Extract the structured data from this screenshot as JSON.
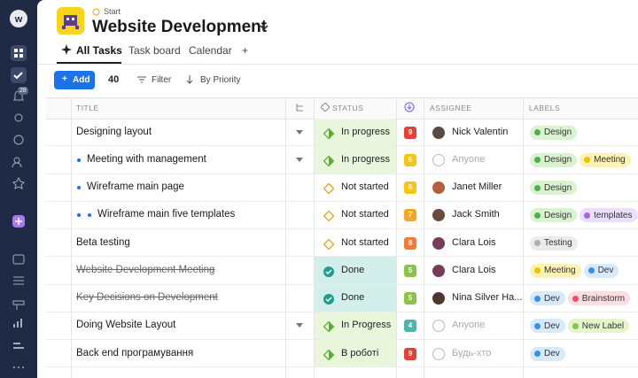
{
  "sidebar": {
    "notification_count": "28"
  },
  "header": {
    "breadcrumb": "Start",
    "title": "Website Development"
  },
  "tabs": [
    "All Tasks",
    "Task board",
    "Calendar",
    "+"
  ],
  "toolbar": {
    "add": "Add",
    "count": "40",
    "filter": "Filter",
    "sort": "By Priority"
  },
  "columns": {
    "title": "TITLE",
    "status": "STATUS",
    "assignee": "ASSIGNEE",
    "labels": "LABELS"
  },
  "rows": [
    {
      "title": "Designing layout",
      "level": 0,
      "expand": true,
      "status": {
        "text": "In progress",
        "bg": "#eaf6dc",
        "icon": "progress"
      },
      "priority": {
        "text": "9",
        "color": "#e0423a"
      },
      "assignee": {
        "text": "Nick Valentin",
        "avatar": "#5a4a42"
      },
      "labels": [
        {
          "text": "Design",
          "bg": "#d9f2d0",
          "dot": "#4caf50"
        }
      ]
    },
    {
      "title": "Meeting with management",
      "level": 1,
      "expand": true,
      "status": {
        "text": "In progress",
        "bg": "#eaf6dc",
        "icon": "progress"
      },
      "priority": {
        "text": "6",
        "color": "#f5c518"
      },
      "assignee": {
        "text": "Anyone"
      },
      "labels": [
        {
          "text": "Design",
          "bg": "#d9f2d0",
          "dot": "#4caf50"
        },
        {
          "text": "Meeting",
          "bg": "#fcf2b4",
          "dot": "#f2c200"
        }
      ]
    },
    {
      "title": "Wireframe main page",
      "level": 1,
      "status": {
        "text": "Not started",
        "icon": "todo"
      },
      "priority": {
        "text": "6",
        "color": "#f5c518"
      },
      "assignee": {
        "text": "Janet Miller",
        "avatar": "#b5603c"
      },
      "labels": [
        {
          "text": "Design",
          "bg": "#d9f2d0",
          "dot": "#4caf50"
        }
      ]
    },
    {
      "title": "Wireframe main five templates",
      "level": 2,
      "status": {
        "text": "Not started",
        "icon": "todo"
      },
      "priority": {
        "text": "7",
        "color": "#f5a524"
      },
      "assignee": {
        "text": "Jack Smith",
        "avatar": "#6b4b3a"
      },
      "labels": [
        {
          "text": "Design",
          "bg": "#d9f2d0",
          "dot": "#4caf50"
        },
        {
          "text": "templates",
          "bg": "#ebdffb",
          "dot": "#9c6ade"
        }
      ]
    },
    {
      "title": "Beta testing",
      "level": 0,
      "status": {
        "text": "Not started",
        "icon": "todo"
      },
      "priority": {
        "text": "8",
        "color": "#f07c3a"
      },
      "assignee": {
        "text": "Clara Lois",
        "avatar": "#7a3b5a"
      },
      "labels": [
        {
          "text": "Testing",
          "bg": "#ebebeb",
          "dot": "#b0b0b0"
        }
      ]
    },
    {
      "title": "Website Development Meeting",
      "level": 0,
      "strike": true,
      "status": {
        "text": "Done",
        "bg": "#d3efeb",
        "icon": "done"
      },
      "priority": {
        "text": "5",
        "color": "#8bc34a"
      },
      "assignee": {
        "text": "Clara Lois",
        "avatar": "#7a3b5a"
      },
      "labels": [
        {
          "text": "Meeting",
          "bg": "#fcf2b4",
          "dot": "#f2c200"
        },
        {
          "text": "Dev",
          "bg": "#d7eafc",
          "dot": "#3a8fe8"
        }
      ]
    },
    {
      "title": "Key Decisions on Development",
      "level": 0,
      "strike": true,
      "status": {
        "text": "Done",
        "bg": "#d3efeb",
        "icon": "done"
      },
      "priority": {
        "text": "5",
        "color": "#8bc34a"
      },
      "assignee": {
        "text": "Nina Silver Ha...",
        "avatar": "#4a3a30"
      },
      "labels": [
        {
          "text": "Dev",
          "bg": "#d7eafc",
          "dot": "#3a8fe8"
        },
        {
          "text": "Brainstorm",
          "bg": "#fbdde2",
          "dot": "#e8506a"
        }
      ]
    },
    {
      "title": "Doing Website Layout",
      "level": 0,
      "expand": true,
      "status": {
        "text": "In Progress",
        "bg": "#eaf6dc",
        "icon": "progress"
      },
      "priority": {
        "text": "4",
        "color": "#4db6ac"
      },
      "assignee": {
        "text": "Anyone"
      },
      "labels": [
        {
          "text": "Dev",
          "bg": "#d7eafc",
          "dot": "#3a8fe8"
        },
        {
          "text": "New Label",
          "bg": "#e6f5c9",
          "dot": "#8bc34a"
        }
      ]
    },
    {
      "title": "Back end програмування",
      "level": 0,
      "status": {
        "text": "В роботі",
        "bg": "#eaf6dc",
        "icon": "progress"
      },
      "priority": {
        "text": "9",
        "color": "#e0423a"
      },
      "assignee": {
        "text": "Будь-хто"
      },
      "labels": [
        {
          "text": "Dev",
          "bg": "#d7eafc",
          "dot": "#3a8fe8"
        }
      ]
    }
  ]
}
